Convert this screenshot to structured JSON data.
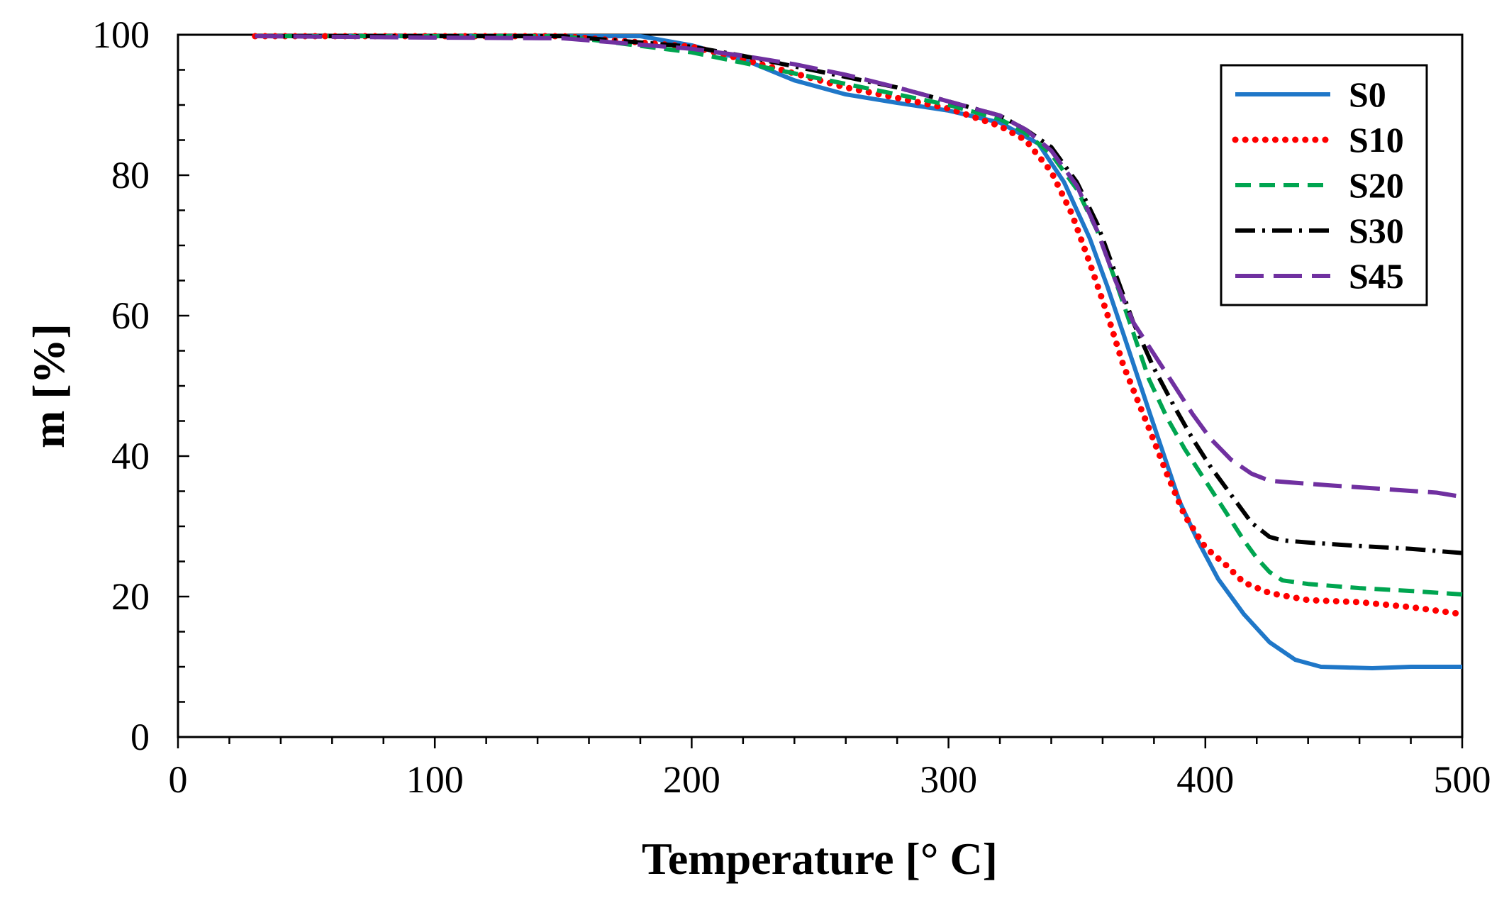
{
  "chart_data": {
    "type": "line",
    "title": "",
    "xlabel": "Temperature [° C]",
    "ylabel": "m [%]",
    "xlim": [
      0,
      500
    ],
    "ylim": [
      0,
      100
    ],
    "xticks": [
      0,
      100,
      200,
      300,
      400,
      500
    ],
    "yticks": [
      0,
      20,
      40,
      60,
      80,
      100
    ],
    "grid": false,
    "legend_position": "top-right",
    "series": [
      {
        "name": "S0",
        "color": "#1f77c8",
        "style": "solid",
        "x": [
          30,
          100,
          150,
          180,
          200,
          220,
          240,
          260,
          280,
          300,
          320,
          335,
          345,
          355,
          362,
          368,
          373,
          378,
          384,
          390,
          397,
          405,
          415,
          425,
          435,
          445,
          455,
          465,
          480,
          500
        ],
        "y": [
          99.8,
          99.8,
          99.8,
          99.8,
          98.5,
          96.5,
          93.5,
          91.5,
          90.3,
          89.2,
          87.5,
          84.5,
          79,
          71,
          64,
          57.5,
          52,
          46.5,
          40,
          33.5,
          28,
          22.5,
          17.5,
          13.5,
          11,
          10,
          9.9,
          9.8,
          10,
          10
        ]
      },
      {
        "name": "S10",
        "color": "#ff0000",
        "style": "dotted",
        "x": [
          30,
          100,
          150,
          200,
          220,
          240,
          260,
          280,
          300,
          320,
          330,
          340,
          348,
          355,
          362,
          368,
          373,
          378,
          385,
          392,
          400,
          408,
          415,
          425,
          440,
          460,
          480,
          500
        ],
        "y": [
          99.8,
          99.8,
          99.8,
          98.3,
          96.5,
          94.5,
          92.5,
          91,
          89.5,
          87,
          85,
          80.5,
          74.5,
          67.5,
          60,
          53,
          48.5,
          44,
          37.5,
          31.5,
          27,
          24.5,
          22,
          20.5,
          19.5,
          19.2,
          18.5,
          17.5
        ]
      },
      {
        "name": "S20",
        "color": "#00a550",
        "style": "dashed",
        "x": [
          30,
          100,
          150,
          200,
          220,
          240,
          260,
          280,
          300,
          320,
          330,
          340,
          350,
          358,
          365,
          372,
          378,
          385,
          392,
          400,
          408,
          415,
          420,
          425,
          430,
          440,
          460,
          480,
          500
        ],
        "y": [
          99.8,
          99.8,
          99.8,
          97.5,
          96,
          94.5,
          93,
          91.5,
          90,
          88,
          86,
          83,
          78,
          72,
          65,
          57.5,
          51,
          45.5,
          41,
          36.5,
          32,
          28,
          25.5,
          23.5,
          22.3,
          21.8,
          21.2,
          20.8,
          20.3
        ]
      },
      {
        "name": "S30",
        "color": "#000000",
        "style": "dashdot",
        "x": [
          30,
          100,
          150,
          200,
          220,
          240,
          260,
          280,
          300,
          320,
          330,
          340,
          350,
          358,
          365,
          372,
          380,
          388,
          395,
          402,
          410,
          418,
          425,
          430,
          440,
          460,
          480,
          500
        ],
        "y": [
          99.8,
          99.8,
          99.8,
          98.3,
          97,
          95.5,
          94,
          92.5,
          90.5,
          88.5,
          86.5,
          84,
          79,
          73,
          66,
          59,
          52.5,
          47,
          42.5,
          38.5,
          34.5,
          30.5,
          28.5,
          28,
          27.7,
          27.2,
          26.8,
          26.2
        ]
      },
      {
        "name": "S45",
        "color": "#7030a0",
        "style": "longdash",
        "x": [
          30,
          100,
          150,
          200,
          220,
          240,
          260,
          280,
          300,
          320,
          330,
          340,
          350,
          358,
          365,
          372,
          380,
          388,
          395,
          402,
          410,
          418,
          425,
          435,
          450,
          470,
          490,
          500
        ],
        "y": [
          99.8,
          99.6,
          99.5,
          98,
          97,
          95.8,
          94.3,
          92.5,
          90.5,
          88.5,
          86.5,
          83.5,
          78.5,
          72,
          65,
          59,
          54.5,
          50,
          46,
          42.5,
          39.5,
          37.5,
          36.5,
          36.2,
          35.8,
          35.3,
          34.8,
          34.2
        ]
      }
    ]
  }
}
